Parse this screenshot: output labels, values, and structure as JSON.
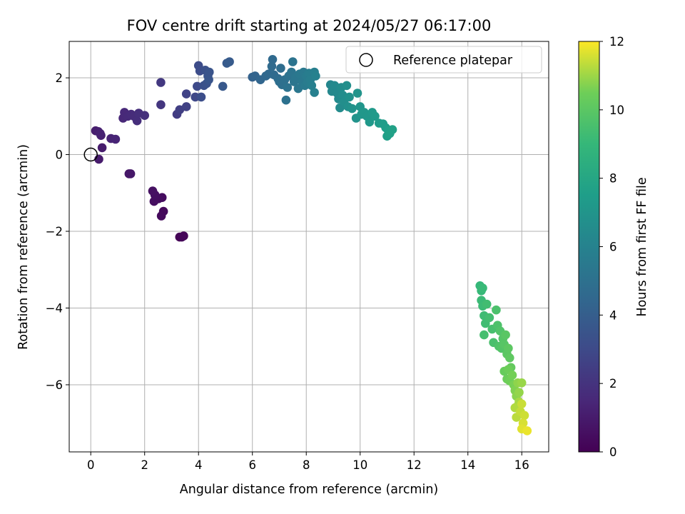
{
  "chart_data": {
    "type": "scatter",
    "title": "FOV centre drift starting at 2024/05/27 06:17:00",
    "xlabel": "Angular distance from reference (arcmin)",
    "ylabel": "Rotation from reference (arcmin)",
    "xlim": [
      -0.8,
      17.0
    ],
    "ylim": [
      -7.75,
      2.95
    ],
    "xticks": [
      0,
      2,
      4,
      6,
      8,
      10,
      12,
      14,
      16
    ],
    "yticks": [
      -6,
      -4,
      -2,
      0,
      2
    ],
    "grid": true,
    "legend": {
      "position": "top-right",
      "entries": [
        "Reference platepar"
      ]
    },
    "reference_point": {
      "x": 0,
      "y": 0
    },
    "colorbar": {
      "label": "Hours from first FF file",
      "min": 0,
      "max": 12,
      "ticks": [
        0,
        2,
        4,
        6,
        8,
        10,
        12
      ],
      "colormap": "viridis"
    },
    "series": [
      {
        "points": [
          [
            3.3,
            -2.15,
            0.05
          ],
          [
            3.45,
            -2.12,
            0.1
          ],
          [
            3.38,
            -2.15,
            0.15
          ],
          [
            2.7,
            -1.48,
            0.3
          ],
          [
            2.62,
            -1.6,
            0.35
          ],
          [
            2.65,
            -1.12,
            0.4
          ],
          [
            2.52,
            -1.15,
            0.45
          ],
          [
            2.35,
            -1.22,
            0.5
          ],
          [
            2.38,
            -1.05,
            0.55
          ],
          [
            2.3,
            -0.95,
            0.6
          ],
          [
            1.42,
            -0.5,
            0.8
          ],
          [
            1.48,
            -0.5,
            0.85
          ],
          [
            0.3,
            -0.12,
            1.0
          ],
          [
            0.42,
            0.18,
            1.05
          ],
          [
            0.18,
            0.62,
            1.1
          ],
          [
            0.28,
            0.6,
            1.15
          ],
          [
            0.38,
            0.5,
            1.2
          ],
          [
            0.35,
            0.55,
            1.25
          ],
          [
            0.75,
            0.42,
            1.35
          ],
          [
            0.92,
            0.4,
            1.4
          ],
          [
            1.2,
            0.95,
            1.5
          ],
          [
            1.25,
            1.1,
            1.55
          ],
          [
            1.38,
            1.0,
            1.6
          ],
          [
            1.5,
            1.05,
            1.65
          ],
          [
            1.6,
            1.0,
            1.7
          ],
          [
            1.72,
            0.88,
            1.75
          ],
          [
            1.78,
            1.08,
            1.8
          ],
          [
            2.0,
            1.02,
            1.85
          ],
          [
            2.6,
            1.3,
            2.1
          ],
          [
            2.6,
            1.88,
            2.2
          ],
          [
            3.2,
            1.05,
            2.4
          ],
          [
            3.3,
            1.17,
            2.5
          ],
          [
            3.55,
            1.25,
            2.6
          ],
          [
            3.55,
            1.58,
            2.7
          ],
          [
            3.88,
            1.5,
            2.9
          ],
          [
            3.95,
            1.78,
            3.0
          ],
          [
            4.0,
            2.32,
            3.1
          ],
          [
            4.05,
            2.18,
            3.15
          ],
          [
            4.1,
            1.5,
            3.2
          ],
          [
            4.2,
            1.8,
            3.3
          ],
          [
            4.25,
            2.2,
            3.35
          ],
          [
            4.3,
            1.85,
            3.4
          ],
          [
            4.35,
            2.05,
            3.45
          ],
          [
            4.4,
            2.15,
            3.5
          ],
          [
            4.38,
            1.95,
            3.55
          ],
          [
            4.9,
            1.78,
            3.7
          ],
          [
            5.05,
            2.38,
            3.8
          ],
          [
            5.15,
            2.42,
            3.85
          ],
          [
            6.0,
            2.02,
            4.2
          ],
          [
            6.1,
            2.05,
            4.3
          ],
          [
            6.3,
            1.95,
            4.4
          ],
          [
            6.5,
            2.05,
            4.5
          ],
          [
            6.6,
            2.1,
            4.55
          ],
          [
            6.75,
            2.48,
            4.6
          ],
          [
            6.72,
            2.3,
            4.65
          ],
          [
            6.8,
            2.08,
            4.7
          ],
          [
            6.95,
            1.98,
            4.75
          ],
          [
            7.05,
            2.25,
            4.8
          ],
          [
            7.0,
            1.9,
            4.85
          ],
          [
            7.1,
            1.82,
            4.9
          ],
          [
            7.2,
            1.95,
            4.95
          ],
          [
            7.25,
            1.42,
            5.0
          ],
          [
            7.3,
            1.75,
            5.05
          ],
          [
            7.35,
            2.05,
            5.1
          ],
          [
            7.5,
            2.42,
            5.15
          ],
          [
            7.45,
            2.15,
            5.2
          ],
          [
            7.55,
            1.9,
            5.25
          ],
          [
            7.6,
            2.0,
            5.3
          ],
          [
            7.7,
            1.72,
            5.35
          ],
          [
            7.75,
            2.1,
            5.4
          ],
          [
            7.85,
            1.9,
            5.45
          ],
          [
            7.9,
            2.15,
            5.5
          ],
          [
            7.95,
            1.8,
            5.55
          ],
          [
            8.0,
            2.05,
            5.6
          ],
          [
            8.05,
            1.88,
            5.65
          ],
          [
            8.1,
            2.12,
            5.7
          ],
          [
            8.15,
            1.95,
            5.75
          ],
          [
            8.2,
            1.8,
            5.8
          ],
          [
            8.3,
            2.15,
            5.85
          ],
          [
            8.3,
            1.62,
            5.9
          ],
          [
            8.35,
            2.05,
            5.95
          ],
          [
            8.9,
            1.82,
            6.2
          ],
          [
            8.95,
            1.65,
            6.3
          ],
          [
            9.05,
            1.8,
            6.35
          ],
          [
            9.15,
            1.6,
            6.4
          ],
          [
            9.2,
            1.45,
            6.45
          ],
          [
            9.25,
            1.22,
            6.5
          ],
          [
            9.3,
            1.75,
            6.55
          ],
          [
            9.35,
            1.55,
            6.6
          ],
          [
            9.4,
            1.38,
            6.65
          ],
          [
            9.5,
            1.8,
            6.7
          ],
          [
            9.55,
            1.25,
            6.75
          ],
          [
            9.6,
            1.5,
            6.8
          ],
          [
            9.7,
            1.2,
            6.85
          ],
          [
            9.85,
            0.95,
            6.9
          ],
          [
            9.9,
            1.6,
            6.95
          ],
          [
            10.0,
            1.25,
            7.0
          ],
          [
            10.05,
            1.05,
            7.05
          ],
          [
            10.15,
            1.1,
            7.1
          ],
          [
            10.25,
            1.0,
            7.15
          ],
          [
            10.35,
            0.85,
            7.2
          ],
          [
            10.45,
            1.1,
            7.25
          ],
          [
            10.55,
            1.0,
            7.3
          ],
          [
            10.7,
            0.82,
            7.35
          ],
          [
            10.85,
            0.8,
            7.45
          ],
          [
            10.95,
            0.7,
            7.5
          ],
          [
            11.0,
            0.48,
            7.55
          ],
          [
            11.05,
            0.62,
            7.6
          ],
          [
            11.1,
            0.55,
            7.65
          ],
          [
            11.2,
            0.65,
            7.7
          ],
          [
            14.45,
            -3.42,
            9.0
          ],
          [
            14.5,
            -3.55,
            9.05
          ],
          [
            14.55,
            -3.48,
            9.1
          ],
          [
            14.5,
            -3.8,
            9.15
          ],
          [
            14.55,
            -3.95,
            9.2
          ],
          [
            14.6,
            -4.2,
            9.25
          ],
          [
            14.65,
            -4.4,
            9.3
          ],
          [
            14.7,
            -3.9,
            9.35
          ],
          [
            14.8,
            -4.25,
            9.4
          ],
          [
            14.6,
            -4.7,
            9.45
          ],
          [
            14.9,
            -4.55,
            9.5
          ],
          [
            14.95,
            -4.9,
            9.55
          ],
          [
            15.05,
            -4.05,
            9.6
          ],
          [
            15.1,
            -4.45,
            9.65
          ],
          [
            15.15,
            -5.0,
            9.7
          ],
          [
            15.2,
            -4.6,
            9.75
          ],
          [
            15.25,
            -5.05,
            9.8
          ],
          [
            15.3,
            -4.8,
            9.85
          ],
          [
            15.35,
            -4.95,
            9.9
          ],
          [
            15.4,
            -4.7,
            9.95
          ],
          [
            15.45,
            -5.2,
            10.0
          ],
          [
            15.5,
            -5.05,
            10.05
          ],
          [
            15.55,
            -5.3,
            10.1
          ],
          [
            15.6,
            -5.55,
            10.2
          ],
          [
            15.35,
            -5.65,
            10.3
          ],
          [
            15.45,
            -5.85,
            10.4
          ],
          [
            15.5,
            -5.6,
            10.45
          ],
          [
            15.55,
            -5.9,
            10.5
          ],
          [
            15.65,
            -5.75,
            10.55
          ],
          [
            15.7,
            -6.0,
            10.6
          ],
          [
            15.75,
            -6.15,
            10.7
          ],
          [
            15.8,
            -6.3,
            10.8
          ],
          [
            15.85,
            -5.95,
            10.85
          ],
          [
            15.9,
            -6.2,
            10.9
          ],
          [
            16.0,
            -5.95,
            10.95
          ],
          [
            15.85,
            -6.55,
            11.0
          ],
          [
            15.9,
            -6.45,
            11.1
          ],
          [
            15.75,
            -6.6,
            11.2
          ],
          [
            15.8,
            -6.85,
            11.3
          ],
          [
            15.95,
            -6.7,
            11.4
          ],
          [
            16.0,
            -6.5,
            11.45
          ],
          [
            16.1,
            -6.8,
            11.5
          ],
          [
            16.05,
            -7.0,
            11.6
          ],
          [
            16.0,
            -7.15,
            11.7
          ],
          [
            16.2,
            -7.2,
            11.8
          ]
        ]
      }
    ]
  }
}
